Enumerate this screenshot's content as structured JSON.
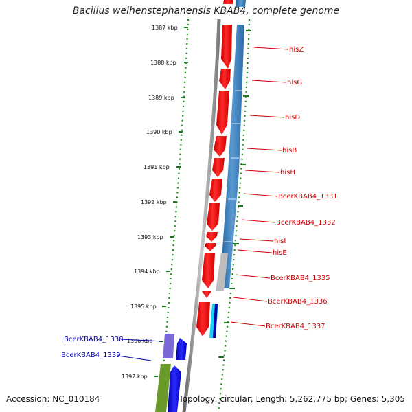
{
  "title": "Bacillus weihenstephanensis KBAB4, complete genome",
  "accession": "Accession: NC_010184",
  "topology": "Topology: circular; Length: 5,262,775 bp; Genes: 5,305",
  "ticks": [
    {
      "label": "1387 kbp"
    },
    {
      "label": "1388 kbp"
    },
    {
      "label": "1389 kbp"
    },
    {
      "label": "1390 kbp"
    },
    {
      "label": "1391 kbp"
    },
    {
      "label": "1392 kbp"
    },
    {
      "label": "1393 kbp"
    },
    {
      "label": "1394 kbp"
    },
    {
      "label": "1395 kbp"
    },
    {
      "label": "1396 kbp"
    },
    {
      "label": "1397 kbp"
    }
  ],
  "genes_right": [
    {
      "name": "hisZ"
    },
    {
      "name": "hisG"
    },
    {
      "name": "hisD"
    },
    {
      "name": "hisB"
    },
    {
      "name": "hisH"
    },
    {
      "name": "BcerKBAB4_1331"
    },
    {
      "name": "BcerKBAB4_1332"
    },
    {
      "name": "hisI"
    },
    {
      "name": "hisE"
    },
    {
      "name": "BcerKBAB4_1335"
    },
    {
      "name": "BcerKBAB4_1336"
    },
    {
      "name": "BcerKBAB4_1337"
    }
  ],
  "genes_left": [
    {
      "name": "BcerKBAB4_1338"
    },
    {
      "name": "BcerKBAB4_1339"
    }
  ],
  "colors": {
    "forward_gene": "#ff1010",
    "reverse_gene": "#0a0aee",
    "cds_blue": "#3a7ec0",
    "cds_purple": "#7a6ad8",
    "cds_olive": "#6a9a2a",
    "cds_cyan": "#18d0f0",
    "tick_green": "#1a7a1a",
    "backbone": "#888888"
  }
}
